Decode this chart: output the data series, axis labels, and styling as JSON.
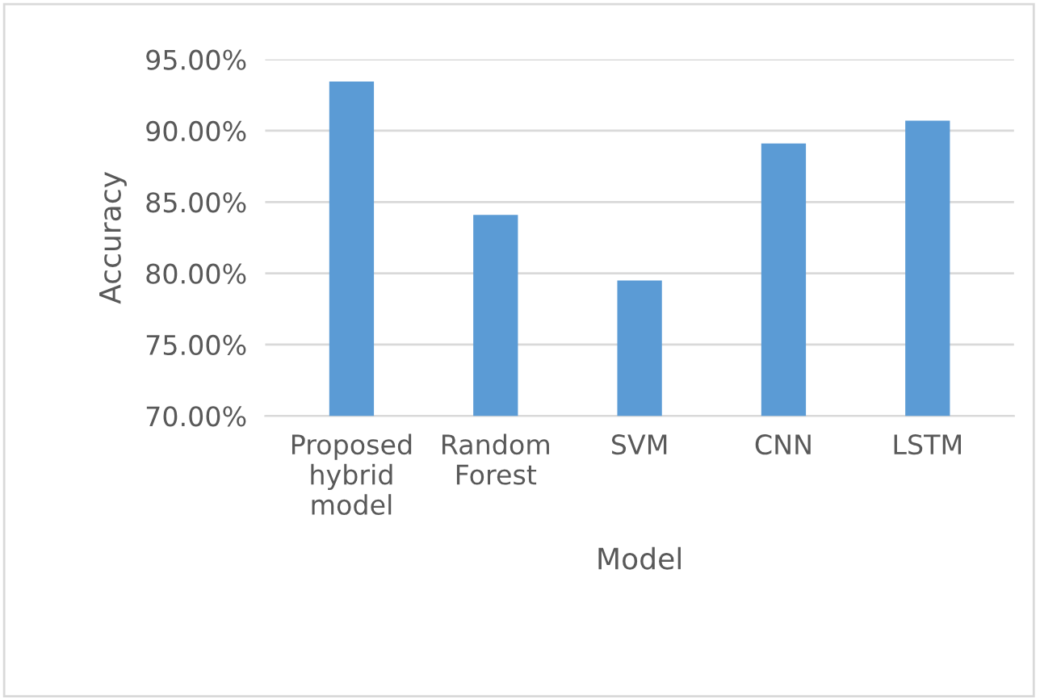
{
  "chart_data": {
    "type": "bar",
    "xlabel": "Model",
    "ylabel": "Accuracy",
    "categories": [
      "Proposed\nhybrid\nmodel",
      "Random\nForest",
      "SVM",
      "CNN",
      "LSTM"
    ],
    "values": [
      93.45,
      84.1,
      79.5,
      89.1,
      90.7
    ],
    "color": "#5b9bd5",
    "ylim": [
      70,
      95
    ],
    "yticks": [
      {
        "value": 70,
        "label": "70.00%"
      },
      {
        "value": 75,
        "label": "75.00%"
      },
      {
        "value": 80,
        "label": "80.00%"
      },
      {
        "value": 85,
        "label": "85.00%"
      },
      {
        "value": 90,
        "label": "90.00%"
      },
      {
        "value": 95,
        "label": "95.00%"
      }
    ],
    "grid": "y"
  }
}
